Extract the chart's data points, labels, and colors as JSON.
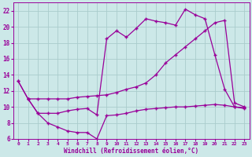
{
  "background_color": "#cce8e8",
  "grid_color": "#aacccc",
  "line_color": "#990099",
  "marker": "+",
  "xlabel": "Windchill (Refroidissement éolien,°C)",
  "xlabel_color": "#990099",
  "tick_color": "#990099",
  "ylim": [
    6,
    23
  ],
  "xlim": [
    -0.5,
    23.5
  ],
  "yticks": [
    6,
    8,
    10,
    12,
    14,
    16,
    18,
    20,
    22
  ],
  "xticks": [
    0,
    1,
    2,
    3,
    4,
    5,
    6,
    7,
    8,
    9,
    10,
    11,
    12,
    13,
    14,
    15,
    16,
    17,
    18,
    19,
    20,
    21,
    22,
    23
  ],
  "s1_x": [
    0,
    1,
    2,
    3,
    4,
    5,
    6,
    7,
    8,
    9,
    10,
    11,
    12,
    13,
    14,
    15,
    16,
    17,
    18,
    19,
    20,
    21,
    22,
    23
  ],
  "s1_y": [
    13.2,
    11.0,
    11.0,
    11.0,
    11.0,
    11.0,
    11.2,
    11.3,
    11.4,
    11.5,
    11.8,
    12.2,
    12.5,
    13.0,
    14.0,
    15.5,
    16.5,
    17.5,
    18.5,
    19.5,
    20.5,
    20.8,
    10.5,
    10.0
  ],
  "s2_x": [
    0,
    1,
    2,
    3,
    4,
    5,
    6,
    7,
    8,
    9,
    10,
    11,
    12,
    13,
    14,
    15,
    16,
    17,
    18,
    19,
    20,
    21,
    22,
    23
  ],
  "s2_y": [
    13.2,
    11.0,
    9.2,
    9.2,
    9.2,
    9.5,
    9.7,
    9.8,
    9.0,
    18.5,
    19.5,
    18.7,
    19.8,
    21.0,
    20.7,
    20.5,
    20.2,
    22.2,
    21.5,
    21.0,
    16.5,
    12.2,
    10.0,
    9.8
  ],
  "s3_x": [
    1,
    2,
    3,
    4,
    5,
    6,
    7,
    8,
    9,
    10,
    11,
    12,
    13,
    14,
    15,
    16,
    17,
    18,
    19,
    20,
    21,
    22,
    23
  ],
  "s3_y": [
    11.0,
    9.2,
    8.0,
    7.5,
    7.0,
    6.8,
    6.8,
    6.0,
    8.9,
    9.0,
    9.2,
    9.5,
    9.7,
    9.8,
    9.9,
    10.0,
    10.0,
    10.1,
    10.2,
    10.3,
    10.2,
    10.0,
    9.9
  ]
}
